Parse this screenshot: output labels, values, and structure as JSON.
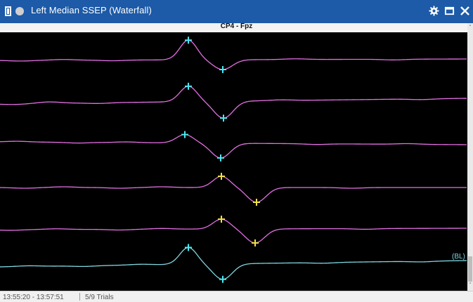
{
  "window": {
    "title": "Left Median SSEP (Waterfall)",
    "title_bar_color": "#1d5aa7"
  },
  "icons": {
    "left": [
      "document-icon",
      "status-dot-icon"
    ],
    "right": [
      "gear-icon",
      "maximize-icon",
      "close-icon"
    ]
  },
  "channel": {
    "label": "CP4 - Fpz"
  },
  "colors": {
    "trial_trace": "#e36fe3",
    "baseline_trace": "#7fd6e0",
    "marker_cyan": "#4fe6ef",
    "marker_yellow": "#f4e14a",
    "plot_background": "#000000"
  },
  "traces": [
    {
      "kind": "trial",
      "markers": [
        {
          "peak": "positive",
          "color": "cyan"
        },
        {
          "peak": "negative",
          "color": "cyan"
        }
      ]
    },
    {
      "kind": "trial",
      "markers": [
        {
          "peak": "positive",
          "color": "cyan"
        },
        {
          "peak": "negative",
          "color": "cyan"
        }
      ]
    },
    {
      "kind": "trial",
      "markers": [
        {
          "peak": "positive",
          "color": "cyan"
        },
        {
          "peak": "negative",
          "color": "cyan"
        }
      ]
    },
    {
      "kind": "trial",
      "markers": [
        {
          "peak": "positive",
          "color": "yellow"
        },
        {
          "peak": "negative",
          "color": "yellow"
        }
      ]
    },
    {
      "kind": "trial",
      "markers": [
        {
          "peak": "positive",
          "color": "yellow"
        },
        {
          "peak": "negative",
          "color": "yellow"
        }
      ]
    },
    {
      "kind": "baseline",
      "label": "(BL)",
      "markers": [
        {
          "peak": "positive",
          "color": "cyan"
        },
        {
          "peak": "negative",
          "color": "cyan"
        }
      ]
    }
  ],
  "status": {
    "time_range": "13:55:20 - 13:57:51",
    "trials": "5/9 Trials"
  }
}
